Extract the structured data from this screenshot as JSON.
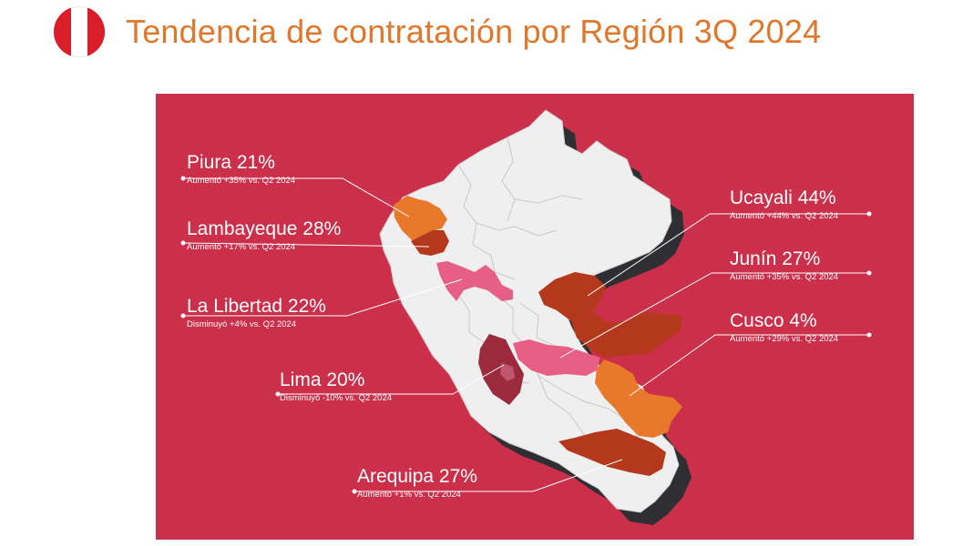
{
  "header": {
    "title": "Tendencia de contratación por Región 3Q 2024",
    "flag": {
      "icon": "peru-flag-icon",
      "colors": [
        "#d91e29",
        "#ffffff",
        "#d91e29"
      ]
    }
  },
  "map": {
    "background_color": "#cc2f49",
    "land_color": "#efefef",
    "shadow_color": "#2f2f33",
    "highlight_colors": {
      "dark_orange": "#b4391c",
      "orange": "#e8782a",
      "pink": "#e85f86",
      "maroon": "#9b2a3c"
    },
    "regions": [
      {
        "id": "piura",
        "label": "Piura 21%",
        "note": "Aumentó +35% vs. Q2 2024",
        "value": 21,
        "change": 35,
        "fill": "orange"
      },
      {
        "id": "lambayeque",
        "label": "Lambayeque 28%",
        "note": "Aumentó +17% vs. Q2 2024",
        "value": 28,
        "change": 17,
        "fill": "dark_orange"
      },
      {
        "id": "la-libertad",
        "label": "La Libertad 22%",
        "note": "Disminuyó +4% vs. Q2 2024",
        "value": 22,
        "change": 4,
        "fill": "pink"
      },
      {
        "id": "lima",
        "label": "Lima 20%",
        "note": "Disminuyó -10% vs. Q2 2024",
        "value": 20,
        "change": -10,
        "fill": "maroon"
      },
      {
        "id": "arequipa",
        "label": "Arequipa 27%",
        "note": "Aumentó +1% vs. Q2 2024",
        "value": 27,
        "change": 1,
        "fill": "dark_orange"
      },
      {
        "id": "ucayali",
        "label": "Ucayali 44%",
        "note": "Aumentó +44% vs. Q2 2024",
        "value": 44,
        "change": 44,
        "fill": "dark_orange"
      },
      {
        "id": "junin",
        "label": "Junín 27%",
        "note": "Aumentó +35% vs. Q2 2024",
        "value": 27,
        "change": 35,
        "fill": "pink"
      },
      {
        "id": "cusco",
        "label": "Cusco 4%",
        "note": "Aumentó +29% vs. Q2 2024",
        "value": 4,
        "change": 29,
        "fill": "orange"
      }
    ]
  }
}
